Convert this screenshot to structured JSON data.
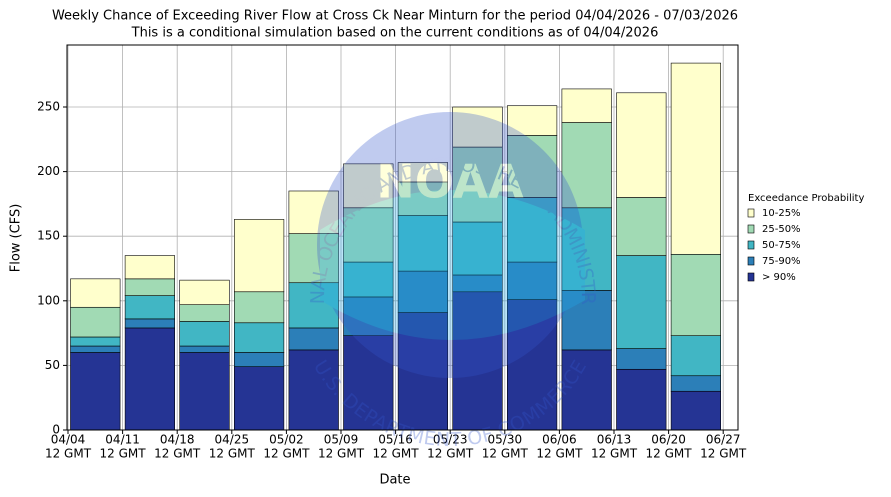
{
  "chart_data": {
    "type": "stacked_bar",
    "title": "Weekly Chance of Exceeding River Flow at Cross Ck Near Minturn for the period 04/04/2026 - 07/03/2026",
    "subtitle": "This is a conditional simulation based on the current conditions as of 04/04/2026",
    "xlabel": "Date",
    "ylabel": "Flow (CFS)",
    "legend_title": "Exceedance Probability",
    "watermark": "NATIONAL OCEANIC AND ATMOSPHERIC ADMINISTRATION",
    "watermark_bottom": "U.S. DEPARTMENT OF COMMERCE",
    "watermark_logo": "NOAA",
    "xticks": [
      [
        "04/04",
        "12 GMT"
      ],
      [
        "04/11",
        "12 GMT"
      ],
      [
        "04/18",
        "12 GMT"
      ],
      [
        "04/25",
        "12 GMT"
      ],
      [
        "05/02",
        "12 GMT"
      ],
      [
        "05/09",
        "12 GMT"
      ],
      [
        "05/16",
        "12 GMT"
      ],
      [
        "05/23",
        "12 GMT"
      ],
      [
        "05/30",
        "12 GMT"
      ],
      [
        "06/06",
        "12 GMT"
      ],
      [
        "06/13",
        "12 GMT"
      ],
      [
        "06/20",
        "12 GMT"
      ],
      [
        "06/27",
        "12 GMT"
      ]
    ],
    "ylim": [
      0,
      298
    ],
    "yticks": [
      0,
      50,
      100,
      150,
      200,
      250
    ],
    "grid": true,
    "legend": "right",
    "series": [
      {
        "name": "> 90%",
        "color": "#253494",
        "values": [
          60,
          79,
          60,
          49,
          62,
          73,
          91,
          107,
          101,
          62,
          47,
          30
        ]
      },
      {
        "name": "75-90%",
        "color": "#2c7fb8",
        "values": [
          5,
          7,
          5,
          11,
          17,
          30,
          32,
          13,
          29,
          46,
          16,
          12
        ]
      },
      {
        "name": "50-75%",
        "color": "#41b6c4",
        "values": [
          7,
          18,
          19,
          23,
          35,
          27,
          43,
          41,
          50,
          64,
          72,
          31
        ]
      },
      {
        "name": "25-50%",
        "color": "#a1dab4",
        "values": [
          23,
          13,
          13,
          24,
          38,
          42,
          26,
          58,
          48,
          66,
          45,
          63
        ]
      },
      {
        "name": "10-25%",
        "color": "#ffffcc",
        "values": [
          22,
          18,
          19,
          56,
          33,
          34,
          15,
          31,
          23,
          26,
          81,
          148
        ]
      }
    ]
  }
}
